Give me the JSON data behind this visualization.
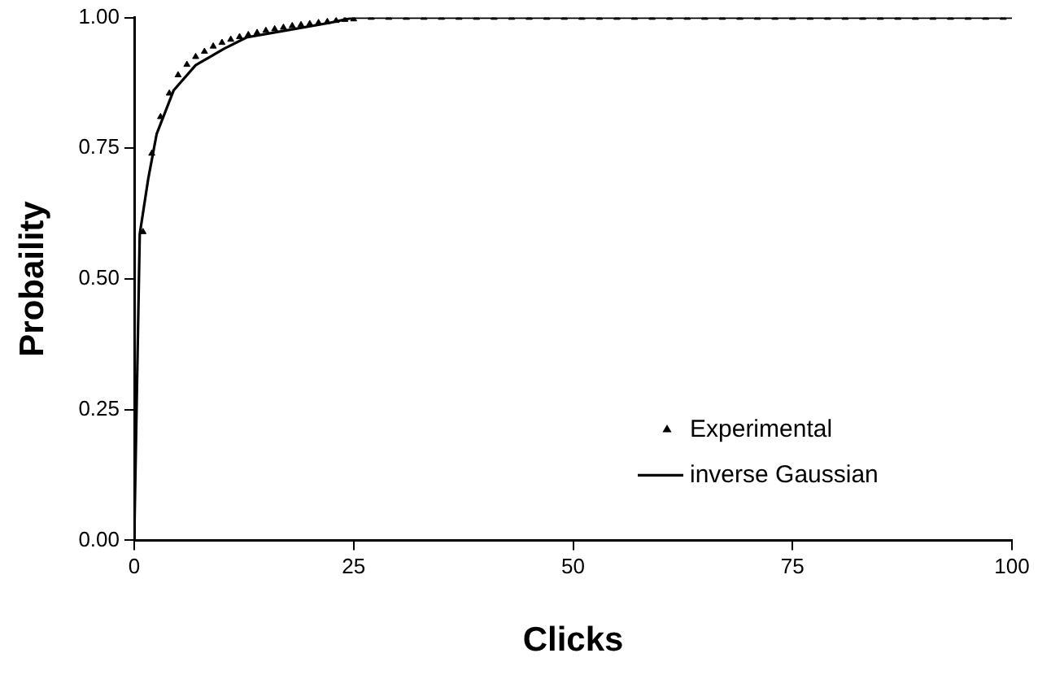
{
  "chart_data": {
    "type": "scatter",
    "xlabel": "Clicks",
    "ylabel": "Probaility",
    "xlim": [
      0,
      100
    ],
    "xticks": [
      0,
      25,
      50,
      75,
      100
    ],
    "ylim": [
      0,
      1
    ],
    "yticks": [
      {
        "value": 0,
        "label": "0.00"
      },
      {
        "value": 0.25,
        "label": "0.25"
      },
      {
        "value": 0.5,
        "label": "0.50"
      },
      {
        "value": 0.75,
        "label": "0.75"
      },
      {
        "value": 1,
        "label": "1.00"
      }
    ],
    "grid": false,
    "legend": "bottom right",
    "series": [
      {
        "name": "Experimental",
        "marker": "triangle",
        "color": "#000000",
        "x": [
          1,
          2,
          3,
          4,
          5,
          6,
          7,
          8,
          9,
          10,
          11,
          12,
          13,
          14,
          15,
          16,
          17,
          18,
          19,
          20,
          21,
          22,
          23,
          24,
          25,
          27,
          29,
          31,
          33,
          35,
          37,
          39,
          41,
          43,
          45,
          47,
          49,
          51,
          53,
          55,
          57,
          59,
          61,
          63,
          65,
          67,
          69,
          71,
          73,
          75,
          77,
          79,
          81,
          83,
          85,
          87,
          89,
          91,
          93,
          95,
          97,
          99
        ],
        "values": [
          0.59,
          0.74,
          0.81,
          0.855,
          0.89,
          0.91,
          0.925,
          0.935,
          0.945,
          0.952,
          0.958,
          0.963,
          0.967,
          0.971,
          0.975,
          0.978,
          0.981,
          0.984,
          0.986,
          0.988,
          0.99,
          0.992,
          0.994,
          0.996,
          0.997,
          1,
          1,
          1,
          1,
          1,
          1,
          1,
          1,
          1,
          1,
          1,
          1,
          1,
          1,
          1,
          1,
          1,
          1,
          1,
          1,
          1,
          1,
          1,
          1,
          1,
          1,
          1,
          1,
          1,
          1,
          1,
          1,
          1,
          1,
          1,
          1,
          1
        ]
      },
      {
        "name": "inverse Gaussian",
        "type": "line",
        "marker": "none",
        "line_style": "solid",
        "color": "#000000",
        "x": [
          0,
          0.32,
          0.63,
          1.6,
          2.55,
          4.5,
          7,
          10.2,
          12.8,
          17.2,
          22.3,
          25,
          100
        ],
        "values": [
          0,
          0.3,
          0.586,
          0.692,
          0.777,
          0.861,
          0.909,
          0.94,
          0.962,
          0.975,
          0.99,
          1,
          1
        ]
      }
    ]
  }
}
